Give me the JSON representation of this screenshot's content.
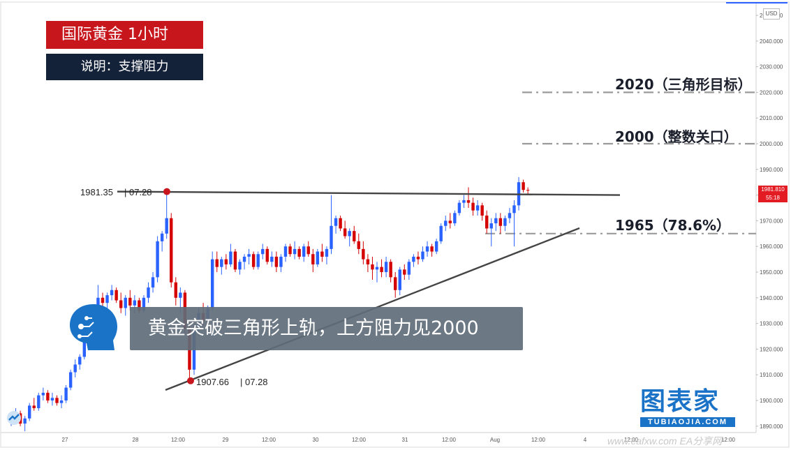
{
  "title_badge": "国际黄金  1小时",
  "subtitle_badge": "说明：支撑阻力",
  "caption": "黄金突破三角形上轨，上方阻力见2000",
  "levels": [
    {
      "price": 2020,
      "label": "2020（三角形目标）"
    },
    {
      "price": 2000,
      "label": "2000（整数关口）"
    },
    {
      "price": 1965,
      "label": "1965（78.6%）"
    }
  ],
  "high_point": {
    "price_text": "1981.35",
    "date_text": "07.28"
  },
  "low_point": {
    "price_text": "1907.66",
    "date_text": "07.28"
  },
  "current_price": {
    "price": "1981.810",
    "countdown": "55:18"
  },
  "currency_badge": "USD",
  "logo": {
    "cn": "图表家",
    "en": "TUBIAOJIA.COM"
  },
  "watermark": "www.eafxw.com EA分享网",
  "colors": {
    "up": "#2962ff",
    "down": "#d50000",
    "line": "#444444",
    "dash": "#9a9a9a"
  },
  "chart_data": {
    "type": "candlestick",
    "title": "国际黄金  1小时",
    "ylim": [
      1887,
      2052
    ],
    "y_ticks": [
      1890,
      1900,
      1910,
      1920,
      1930,
      1940,
      1950,
      1960,
      1970,
      1980,
      1990,
      2000,
      2010,
      2020,
      2030,
      2040,
      2050
    ],
    "y_tick_labels": [
      "1890.000",
      "1900.000",
      "1910.000",
      "1920.000",
      "1930.000",
      "1940.000",
      "1950.000",
      "1960.000",
      "1970.000",
      "1980.000",
      "1990.000",
      "2000.000",
      "2010.000",
      "2020.000",
      "2030.000",
      "2040.000",
      "2050.000"
    ],
    "x_tick_labels": [
      "27",
      "28",
      "12:00",
      "29",
      "12:00",
      "30",
      "12:00",
      "31",
      "12:00",
      "Aug",
      "12:00",
      "4",
      "12:00",
      "12:00"
    ],
    "grid": false,
    "hlines": [
      2020,
      2000,
      1965
    ],
    "resistance_line": {
      "from": {
        "bar": 34,
        "price": 1981.35
      },
      "to": {
        "bar": 130,
        "price": 1980.0
      }
    },
    "support_line": {
      "from": {
        "bar": 33,
        "price": 1903.5
      },
      "to": {
        "bar": 118,
        "price": 1966.5
      }
    },
    "candles": [
      [
        1892,
        1895,
        1890,
        1893
      ],
      [
        1893,
        1897,
        1891,
        1895
      ],
      [
        1895,
        1896,
        1890,
        1891
      ],
      [
        1891,
        1894,
        1888,
        1893
      ],
      [
        1893,
        1899,
        1892,
        1898
      ],
      [
        1898,
        1901,
        1896,
        1897
      ],
      [
        1897,
        1903,
        1896,
        1902
      ],
      [
        1902,
        1905,
        1900,
        1903
      ],
      [
        1903,
        1904,
        1899,
        1900
      ],
      [
        1900,
        1903,
        1898,
        1901
      ],
      [
        1901,
        1902,
        1898,
        1899
      ],
      [
        1899,
        1902,
        1897,
        1900
      ],
      [
        1900,
        1906,
        1899,
        1905
      ],
      [
        1905,
        1912,
        1904,
        1911
      ],
      [
        1911,
        1916,
        1909,
        1914
      ],
      [
        1914,
        1918,
        1912,
        1917
      ],
      [
        1917,
        1925,
        1916,
        1924
      ],
      [
        1924,
        1933,
        1923,
        1932
      ],
      [
        1932,
        1937,
        1930,
        1935
      ],
      [
        1935,
        1945,
        1934,
        1940
      ],
      [
        1940,
        1942,
        1936,
        1938
      ],
      [
        1938,
        1942,
        1935,
        1941
      ],
      [
        1941,
        1945,
        1939,
        1943
      ],
      [
        1943,
        1944,
        1938,
        1939
      ],
      [
        1939,
        1942,
        1934,
        1936
      ],
      [
        1936,
        1941,
        1933,
        1940
      ],
      [
        1940,
        1943,
        1935,
        1937
      ],
      [
        1937,
        1941,
        1934,
        1939
      ],
      [
        1939,
        1940,
        1934,
        1935
      ],
      [
        1935,
        1941,
        1934,
        1940
      ],
      [
        1940,
        1946,
        1938,
        1944
      ],
      [
        1944,
        1950,
        1942,
        1948
      ],
      [
        1948,
        1964,
        1946,
        1962
      ],
      [
        1962,
        1966,
        1958,
        1965
      ],
      [
        1965,
        1981.35,
        1963,
        1971
      ],
      [
        1971,
        1973,
        1944,
        1946
      ],
      [
        1946,
        1948,
        1937,
        1940
      ],
      [
        1940,
        1944,
        1934,
        1942
      ],
      [
        1942,
        1943,
        1926,
        1928
      ],
      [
        1928,
        1930,
        1908,
        1912
      ],
      [
        1912,
        1930,
        1910,
        1928
      ],
      [
        1928,
        1936,
        1925,
        1934
      ],
      [
        1934,
        1938,
        1929,
        1931
      ],
      [
        1931,
        1937,
        1930,
        1936
      ],
      [
        1936,
        1958,
        1935,
        1955
      ],
      [
        1955,
        1958,
        1950,
        1952
      ],
      [
        1952,
        1956,
        1949,
        1955
      ],
      [
        1955,
        1957,
        1951,
        1953
      ],
      [
        1953,
        1961,
        1952,
        1958
      ],
      [
        1958,
        1959,
        1950,
        1951
      ],
      [
        1951,
        1955,
        1949,
        1954
      ],
      [
        1954,
        1957,
        1951,
        1956
      ],
      [
        1956,
        1959,
        1953,
        1957
      ],
      [
        1957,
        1958,
        1951,
        1952
      ],
      [
        1952,
        1958,
        1951,
        1957
      ],
      [
        1957,
        1961,
        1955,
        1959
      ],
      [
        1959,
        1960,
        1953,
        1954
      ],
      [
        1954,
        1958,
        1952,
        1956
      ],
      [
        1956,
        1958,
        1950,
        1952
      ],
      [
        1952,
        1957,
        1950,
        1956
      ],
      [
        1956,
        1961,
        1954,
        1960
      ],
      [
        1960,
        1961,
        1956,
        1957
      ],
      [
        1957,
        1962,
        1955,
        1959
      ],
      [
        1959,
        1960,
        1955,
        1956
      ],
      [
        1956,
        1961,
        1954,
        1960
      ],
      [
        1960,
        1962,
        1956,
        1957
      ],
      [
        1957,
        1959,
        1950,
        1953
      ],
      [
        1953,
        1959,
        1952,
        1958
      ],
      [
        1958,
        1961,
        1954,
        1956
      ],
      [
        1956,
        1960,
        1953,
        1959
      ],
      [
        1959,
        1980,
        1957,
        1968
      ],
      [
        1968,
        1972,
        1965,
        1971
      ],
      [
        1971,
        1972,
        1966,
        1967
      ],
      [
        1967,
        1970,
        1963,
        1964
      ],
      [
        1964,
        1967,
        1960,
        1966
      ],
      [
        1966,
        1968,
        1961,
        1962
      ],
      [
        1962,
        1965,
        1957,
        1959
      ],
      [
        1959,
        1962,
        1953,
        1955
      ],
      [
        1955,
        1957,
        1950,
        1953
      ],
      [
        1953,
        1956,
        1947,
        1951
      ],
      [
        1951,
        1954,
        1946,
        1952
      ],
      [
        1952,
        1955,
        1948,
        1950
      ],
      [
        1950,
        1956,
        1948,
        1954
      ],
      [
        1954,
        1955,
        1946,
        1948
      ],
      [
        1948,
        1950,
        1940,
        1943
      ],
      [
        1943,
        1952,
        1941,
        1951
      ],
      [
        1951,
        1953,
        1947,
        1949
      ],
      [
        1949,
        1955,
        1947,
        1954
      ],
      [
        1954,
        1957,
        1952,
        1956
      ],
      [
        1956,
        1958,
        1953,
        1955
      ],
      [
        1955,
        1960,
        1954,
        1958
      ],
      [
        1958,
        1962,
        1956,
        1960
      ],
      [
        1960,
        1961,
        1956,
        1958
      ],
      [
        1958,
        1963,
        1957,
        1962
      ],
      [
        1962,
        1969,
        1961,
        1968
      ],
      [
        1968,
        1972,
        1966,
        1970
      ],
      [
        1970,
        1973,
        1967,
        1969
      ],
      [
        1969,
        1974,
        1968,
        1973
      ],
      [
        1973,
        1978,
        1972,
        1977
      ],
      [
        1977,
        1980,
        1975,
        1978
      ],
      [
        1978,
        1983,
        1975,
        1977
      ],
      [
        1977,
        1979,
        1972,
        1974
      ],
      [
        1974,
        1978,
        1972,
        1976
      ],
      [
        1976,
        1977,
        1970,
        1972
      ],
      [
        1972,
        1974,
        1965,
        1967
      ],
      [
        1967,
        1971,
        1960,
        1969
      ],
      [
        1969,
        1973,
        1966,
        1971
      ],
      [
        1971,
        1973,
        1965,
        1968
      ],
      [
        1968,
        1972,
        1966,
        1971
      ],
      [
        1971,
        1975,
        1969,
        1973
      ],
      [
        1973,
        1978,
        1960,
        1976
      ],
      [
        1976,
        1987,
        1974,
        1985
      ],
      [
        1985,
        1986,
        1981,
        1982
      ],
      [
        1982,
        1983,
        1980,
        1981.8
      ]
    ]
  }
}
